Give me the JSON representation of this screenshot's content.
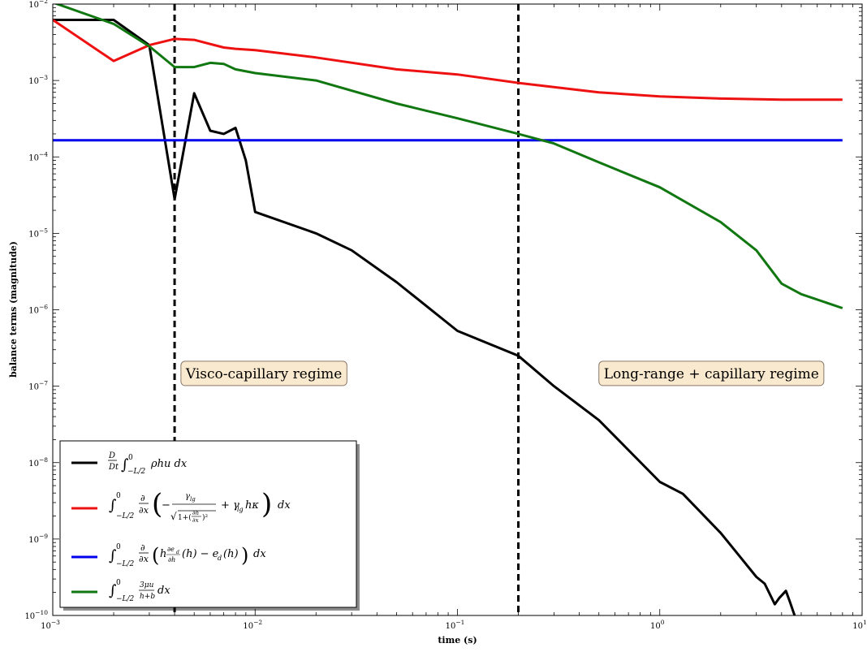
{
  "chart_data": {
    "type": "line",
    "title": "",
    "xlabel": "time (s)",
    "ylabel": "balance terms (magnitude)",
    "xscale": "log",
    "yscale": "log",
    "xlim": [
      0.001,
      10
    ],
    "ylim": [
      1e-10,
      0.01
    ],
    "grid": false,
    "legend_position": "lower-left",
    "x_ticks": [
      {
        "value": 0.001,
        "base": "10",
        "exp": "−3"
      },
      {
        "value": 0.01,
        "base": "10",
        "exp": "−2"
      },
      {
        "value": 0.1,
        "base": "10",
        "exp": "−1"
      },
      {
        "value": 1,
        "base": "10",
        "exp": "0"
      },
      {
        "value": 10,
        "base": "10",
        "exp": "1"
      }
    ],
    "y_ticks": [
      {
        "value": 1e-10,
        "base": "10",
        "exp": "−10"
      },
      {
        "value": 1e-09,
        "base": "10",
        "exp": "−9"
      },
      {
        "value": 1e-08,
        "base": "10",
        "exp": "−8"
      },
      {
        "value": 1e-07,
        "base": "10",
        "exp": "−7"
      },
      {
        "value": 1e-06,
        "base": "10",
        "exp": "−6"
      },
      {
        "value": 1e-05,
        "base": "10",
        "exp": "−5"
      },
      {
        "value": 0.0001,
        "base": "10",
        "exp": "−4"
      },
      {
        "value": 0.001,
        "base": "10",
        "exp": "−3"
      },
      {
        "value": 0.01,
        "base": "10",
        "exp": "−2"
      }
    ],
    "vlines": [
      0.004,
      0.2
    ],
    "annotations": [
      {
        "text": "Visco-capillary regime",
        "x": 0.0043,
        "y": 1.3e-07
      },
      {
        "text": "Long-range + capillary regime",
        "x": 0.5,
        "y": 1.3e-07
      }
    ],
    "series": [
      {
        "name": "D/Dt ∫₀^{−L/2} ρhu dx",
        "color": "#000000",
        "points": [
          [
            0.001,
            0.0062
          ],
          [
            0.002,
            0.0062
          ],
          [
            0.003,
            0.0029
          ],
          [
            0.004,
            2.8e-05
          ],
          [
            0.005,
            0.00068
          ],
          [
            0.006,
            0.00022
          ],
          [
            0.007,
            0.0002
          ],
          [
            0.008,
            0.00024
          ],
          [
            0.009,
            9e-05
          ],
          [
            0.01,
            1.9e-05
          ],
          [
            0.02,
            1e-05
          ],
          [
            0.03,
            6e-06
          ],
          [
            0.05,
            2.3e-06
          ],
          [
            0.1,
            5.3e-07
          ],
          [
            0.2,
            2.5e-07
          ],
          [
            0.3,
            1e-07
          ],
          [
            0.5,
            3.6e-08
          ],
          [
            1,
            5.6e-09
          ],
          [
            1.3,
            3.9e-09
          ],
          [
            2,
            1.2e-09
          ],
          [
            2.5,
            5.8e-10
          ],
          [
            3,
            3.2e-10
          ],
          [
            3.3,
            2.6e-10
          ],
          [
            3.7,
            1.4e-10
          ],
          [
            3.9,
            1.7e-10
          ],
          [
            4.2,
            2.1e-10
          ],
          [
            4.4,
            1.5e-10
          ],
          [
            4.7,
            9e-11
          ]
        ]
      },
      {
        "name": "∫₀^{−L/2} ∂/∂x ( −γ_lg/√(1+(∂h/∂x)²) + γ_lg hκ ) dx",
        "color": "#ee1111",
        "points": [
          [
            0.001,
            0.0062
          ],
          [
            0.002,
            0.0018
          ],
          [
            0.003,
            0.0029
          ],
          [
            0.004,
            0.0035
          ],
          [
            0.005,
            0.0034
          ],
          [
            0.007,
            0.0027
          ],
          [
            0.008,
            0.0026
          ],
          [
            0.01,
            0.0025
          ],
          [
            0.02,
            0.002
          ],
          [
            0.05,
            0.0014
          ],
          [
            0.1,
            0.0012
          ],
          [
            0.2,
            0.00093
          ],
          [
            0.5,
            0.0007
          ],
          [
            1,
            0.00062
          ],
          [
            2,
            0.00058
          ],
          [
            4,
            0.00056
          ],
          [
            8,
            0.00056
          ]
        ]
      },
      {
        "name": "∫₀^{−L/2} ∂/∂x ( h ∂e_d/∂h(h) − e_d(h) ) dx",
        "color": "#0000ee",
        "points": [
          [
            0.001,
            0.000165
          ],
          [
            8,
            0.000165
          ]
        ]
      },
      {
        "name": "∫₀^{−L/2} 3μu/(h+b) dx",
        "color": "#117711",
        "points": [
          [
            0.001,
            0.0105
          ],
          [
            0.002,
            0.0055
          ],
          [
            0.003,
            0.0028
          ],
          [
            0.004,
            0.0015
          ],
          [
            0.005,
            0.0015
          ],
          [
            0.006,
            0.0017
          ],
          [
            0.007,
            0.00165
          ],
          [
            0.008,
            0.0014
          ],
          [
            0.01,
            0.00125
          ],
          [
            0.02,
            0.001
          ],
          [
            0.05,
            0.0005
          ],
          [
            0.1,
            0.00032
          ],
          [
            0.2,
            0.0002
          ],
          [
            0.3,
            0.00015
          ],
          [
            0.5,
            8.5e-05
          ],
          [
            1,
            4e-05
          ],
          [
            2,
            1.4e-05
          ],
          [
            3,
            6e-06
          ],
          [
            4,
            2.2e-06
          ],
          [
            5,
            1.6e-06
          ],
          [
            8,
            1.05e-06
          ]
        ]
      }
    ]
  }
}
